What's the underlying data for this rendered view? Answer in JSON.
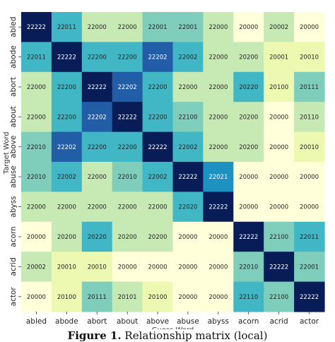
{
  "top_caption": "",
  "figure_caption": {
    "label": "Figure 1.",
    "text": " Relationship matrix (local)"
  },
  "chart_data": {
    "type": "heatmap",
    "xlabel": "Guess Word",
    "ylabel": "Target Word",
    "x_categories": [
      "abled",
      "abode",
      "abort",
      "about",
      "above",
      "abuse",
      "abyss",
      "acorn",
      "acrid",
      "actor"
    ],
    "y_categories": [
      "abled",
      "abode",
      "abort",
      "about",
      "above",
      "abuse",
      "abyss",
      "acorn",
      "acrid",
      "actor"
    ],
    "values": [
      [
        "22222",
        "22011",
        "22000",
        "22000",
        "22001",
        "22001",
        "22000",
        "20000",
        "20002",
        "20000"
      ],
      [
        "22011",
        "22222",
        "22200",
        "22200",
        "22202",
        "22002",
        "22000",
        "20200",
        "20001",
        "20010"
      ],
      [
        "22000",
        "22200",
        "22222",
        "22202",
        "22200",
        "22000",
        "22000",
        "20220",
        "20100",
        "20111"
      ],
      [
        "22000",
        "22200",
        "22202",
        "22222",
        "22200",
        "22100",
        "22000",
        "20200",
        "20000",
        "20110"
      ],
      [
        "22010",
        "22202",
        "22200",
        "22200",
        "22222",
        "22002",
        "22000",
        "20200",
        "20000",
        "20010"
      ],
      [
        "22010",
        "22002",
        "22000",
        "22010",
        "22002",
        "22222",
        "22021",
        "20000",
        "20000",
        "20000"
      ],
      [
        "22000",
        "22000",
        "22000",
        "22000",
        "22000",
        "22020",
        "22222",
        "20000",
        "20000",
        "20000"
      ],
      [
        "20000",
        "20200",
        "20220",
        "20200",
        "20200",
        "20000",
        "20000",
        "22222",
        "22100",
        "22011"
      ],
      [
        "20002",
        "20010",
        "20010",
        "20000",
        "20000",
        "20000",
        "20000",
        "22010",
        "22222",
        "22001"
      ],
      [
        "20000",
        "20100",
        "20111",
        "20101",
        "20100",
        "20000",
        "20000",
        "22110",
        "22100",
        "22222"
      ]
    ],
    "colormap": [
      "#ffffd9",
      "#edf8b1",
      "#c7e9b4",
      "#7fcdbb",
      "#41b6c4",
      "#1d91c0",
      "#225ea8",
      "#253494",
      "#081d58"
    ],
    "grid": false,
    "legend": "none"
  }
}
